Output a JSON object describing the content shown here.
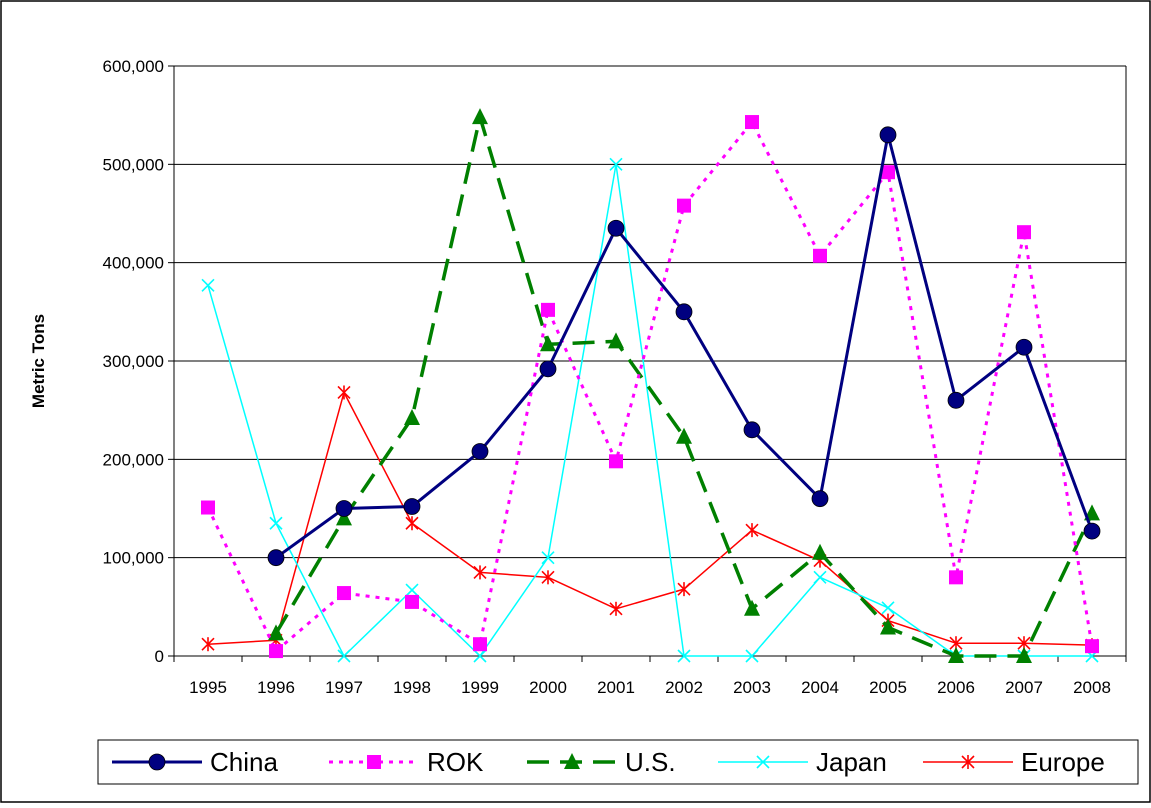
{
  "chart_data": {
    "type": "line",
    "title": "",
    "xlabel": "",
    "ylabel": "Metric Tons",
    "ylim": [
      0,
      600000
    ],
    "yticks": [
      0,
      100000,
      200000,
      300000,
      400000,
      500000,
      600000
    ],
    "ytick_labels": [
      "0",
      "100,000",
      "200,000",
      "300,000",
      "400,000",
      "500,000",
      "600,000"
    ],
    "grid": true,
    "legend_position": "bottom",
    "categories": [
      "1995",
      "1996",
      "1997",
      "1998",
      "1999",
      "2000",
      "2001",
      "2002",
      "2003",
      "2004",
      "2005",
      "2006",
      "2007",
      "2008"
    ],
    "series": [
      {
        "name": "China",
        "color": "#000080",
        "marker": "circle",
        "line_style": "solid",
        "values": [
          null,
          100000,
          150000,
          152000,
          208000,
          292000,
          435000,
          350000,
          230000,
          160000,
          530000,
          260000,
          314000,
          127000
        ]
      },
      {
        "name": "ROK",
        "color": "#FF00FF",
        "marker": "square",
        "line_style": "dotted",
        "values": [
          151000,
          5000,
          64000,
          55000,
          12000,
          352000,
          198000,
          458000,
          543000,
          407000,
          492000,
          80000,
          431000,
          10000
        ]
      },
      {
        "name": "U.S.",
        "color": "#008000",
        "marker": "triangle",
        "line_style": "dashed",
        "values": [
          null,
          23000,
          140000,
          242000,
          548000,
          317000,
          320000,
          223000,
          48000,
          105000,
          29000,
          0,
          0,
          145000
        ]
      },
      {
        "name": "Japan",
        "color": "#00FFFF",
        "marker": "x",
        "line_style": "solid",
        "values": [
          377000,
          135000,
          0,
          67000,
          0,
          100000,
          500000,
          0,
          0,
          80000,
          49000,
          0,
          0,
          0
        ]
      },
      {
        "name": "Europe",
        "color": "#FF0000",
        "marker": "star",
        "line_style": "solid",
        "values": [
          12000,
          16000,
          268000,
          135000,
          85000,
          80000,
          48000,
          68000,
          128000,
          97000,
          36000,
          13000,
          13000,
          11000
        ]
      }
    ]
  }
}
